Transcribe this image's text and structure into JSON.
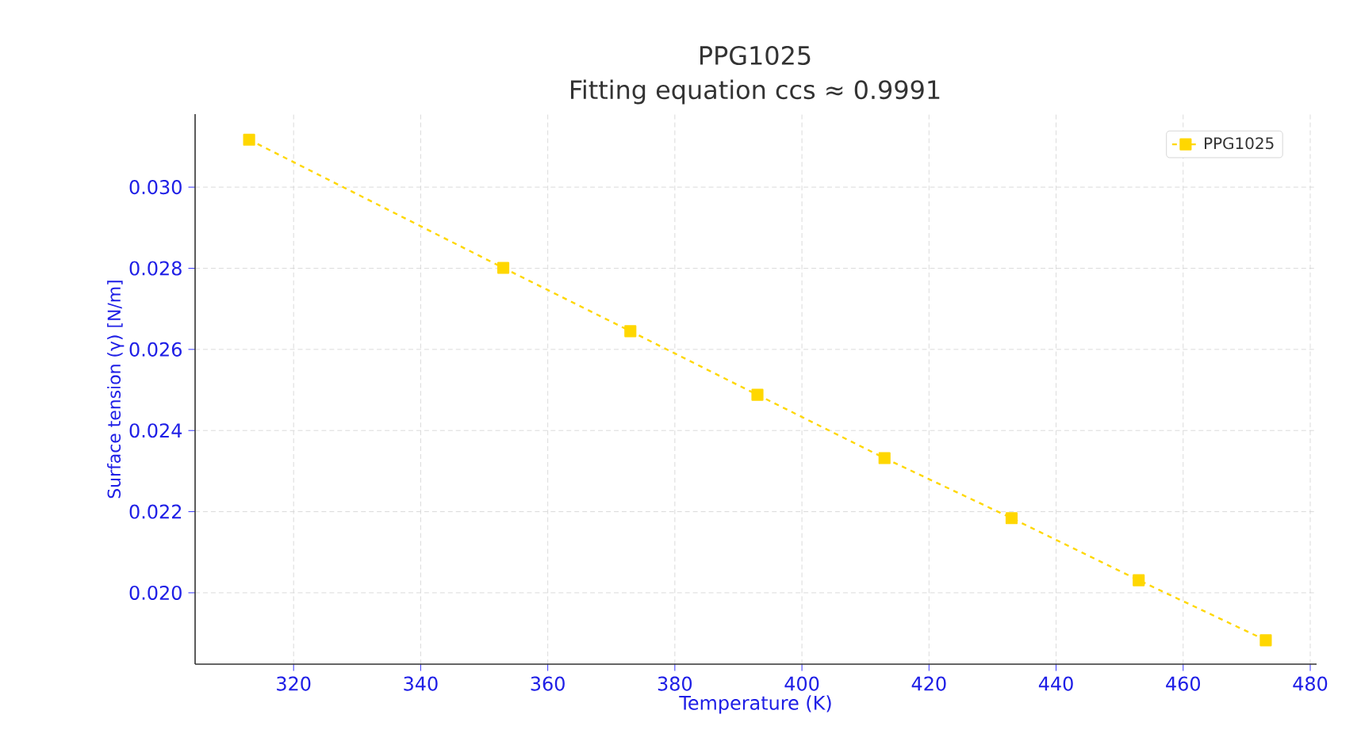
{
  "chart_data": {
    "type": "line",
    "title": "PPG1025",
    "subtitle": "Fitting equation    ccs ≈ 0.9991",
    "xlabel": "Temperature (K)",
    "ylabel": "Surface tension (γ) [N/m]",
    "x": [
      313,
      353,
      373,
      393,
      413,
      433,
      453,
      473
    ],
    "series": [
      {
        "name": "PPG1025",
        "color": "#ffd700",
        "values": [
          0.03117,
          0.02801,
          0.02645,
          0.02488,
          0.02332,
          0.02184,
          0.02031,
          0.01883
        ]
      }
    ],
    "xlim": [
      304.5,
      481
    ],
    "ylim": [
      0.01824,
      0.0318
    ],
    "xticks": [
      320,
      340,
      360,
      380,
      400,
      420,
      440,
      460,
      480
    ],
    "yticks": [
      {
        "value": 0.02,
        "label": "0.020"
      },
      {
        "value": 0.022,
        "label": "0.022"
      },
      {
        "value": 0.024,
        "label": "0.024"
      },
      {
        "value": 0.026,
        "label": "0.026"
      },
      {
        "value": 0.028,
        "label": "0.028"
      },
      {
        "value": 0.03,
        "label": "0.030"
      }
    ],
    "grid": true,
    "legend": "top right",
    "marker": "square",
    "line_style": "dashed"
  }
}
